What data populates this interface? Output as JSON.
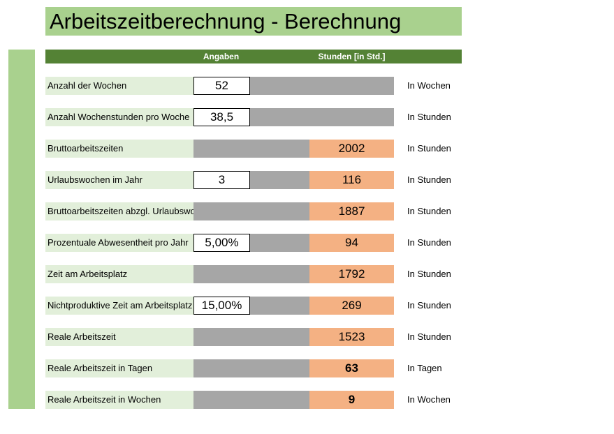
{
  "title": "Arbeitszeitberechnung - Berechnung",
  "headers": {
    "angaben": "Angaben",
    "stunden": "Stunden [in Std.]"
  },
  "colors": {
    "title_bg": "#a9d18e",
    "header_bg": "#548235",
    "label_bg": "#e2efda",
    "grey_fill": "#a6a6a6",
    "result_bg": "#f4b183"
  },
  "rows": [
    {
      "label": "Anzahl der Wochen",
      "input": "52",
      "result": null,
      "unit": "In Wochen"
    },
    {
      "label": "Anzahl Wochenstunden pro Woche",
      "input": "38,5",
      "result": null,
      "unit": "In Stunden"
    },
    {
      "label": "Bruttoarbeitszeiten",
      "input": null,
      "result": "2002",
      "unit": "In Stunden"
    },
    {
      "label": "Urlaubswochen im Jahr",
      "input": "3",
      "result": "116",
      "unit": "In Stunden"
    },
    {
      "label": "Bruttoarbeitszeiten abzgl. Urlaubswochen",
      "input": null,
      "result": "1887",
      "unit": "In Stunden"
    },
    {
      "label": "Prozentuale Abwesentheit pro Jahr",
      "input": "5,00%",
      "result": "94",
      "unit": "In Stunden"
    },
    {
      "label": "Zeit am Arbeitsplatz",
      "input": null,
      "result": "1792",
      "unit": "In Stunden"
    },
    {
      "label": "Nichtproduktive Zeit am Arbeitsplatz",
      "input": "15,00%",
      "result": "269",
      "unit": "In Stunden"
    },
    {
      "label": "Reale Arbeitszeit",
      "input": null,
      "result": "1523",
      "unit": "In Stunden"
    },
    {
      "label": "Reale Arbeitszeit in Tagen",
      "input": null,
      "result": "63",
      "result_bold": true,
      "unit": "In Tagen"
    },
    {
      "label": "Reale Arbeitszeit in Wochen",
      "input": null,
      "result": "9",
      "result_bold": true,
      "unit": "In Wochen"
    }
  ]
}
